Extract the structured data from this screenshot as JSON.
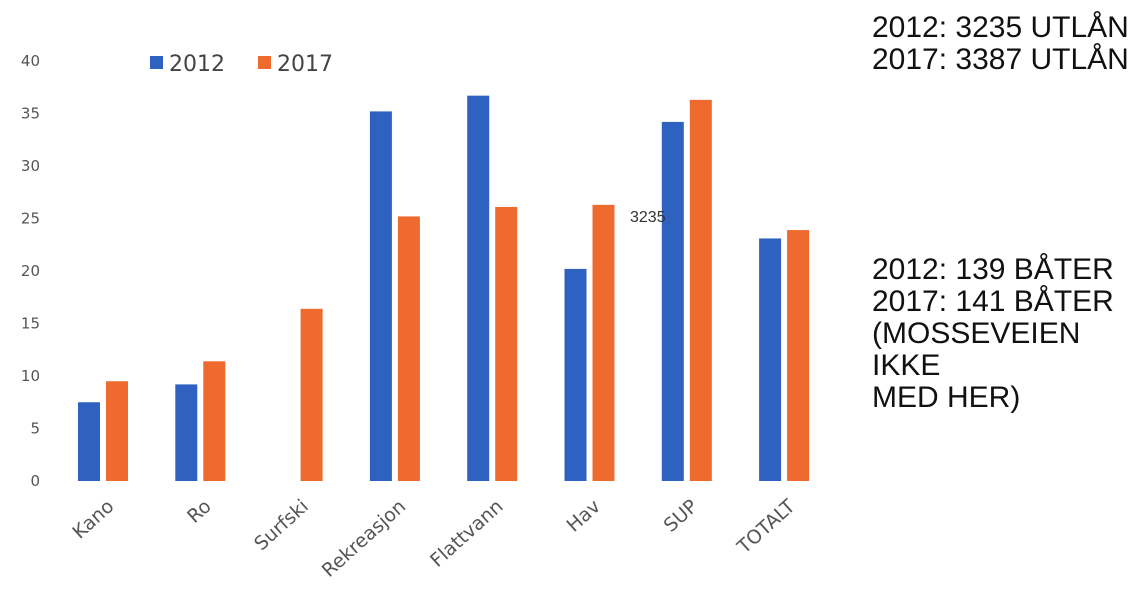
{
  "chart_data": {
    "type": "bar",
    "categories": [
      "Kano",
      "Ro",
      "Surfski",
      "Rekreasjon",
      "Flattvann",
      "Hav",
      "SUP",
      "TOTALT"
    ],
    "series": [
      {
        "name": "2012",
        "color": "#2f62c0",
        "values": [
          7.5,
          9.2,
          null,
          35.2,
          36.7,
          20.2,
          34.2,
          23.1
        ]
      },
      {
        "name": "2017",
        "color": "#ef6a2e",
        "values": [
          9.5,
          11.4,
          16.4,
          25.2,
          26.1,
          26.3,
          36.3,
          23.9
        ]
      }
    ],
    "ylim": [
      0,
      40
    ],
    "yticks": [
      0,
      5,
      10,
      15,
      20,
      25,
      30,
      35,
      40
    ],
    "grid": false,
    "legend": "top-left",
    "annotation": "3235"
  },
  "notes": {
    "loans": [
      "2012: 3235 UTLÅN",
      "2017: 3387 UTLÅN"
    ],
    "boats": [
      "2012: 139 BÅTER",
      "2017: 141 BÅTER",
      "(MOSSEVEIEN",
      "IKKE",
      "MED HER)"
    ]
  }
}
